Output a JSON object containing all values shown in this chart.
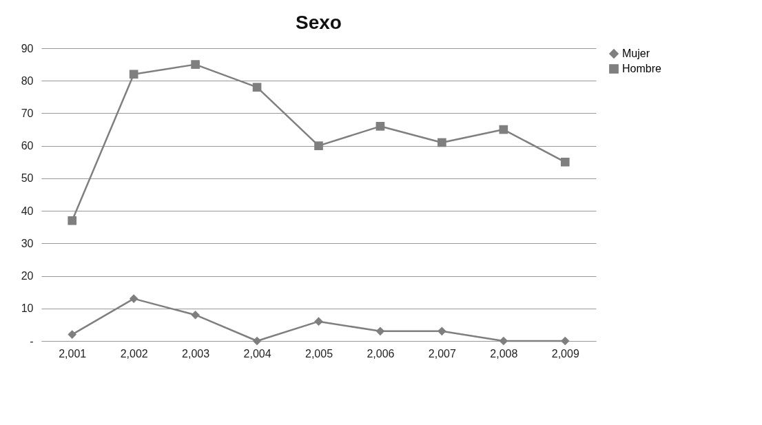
{
  "chart_data": {
    "type": "line",
    "title": "Sexo",
    "categories": [
      "2,001",
      "2,002",
      "2,003",
      "2,004",
      "2,005",
      "2,006",
      "2,007",
      "2,008",
      "2,009"
    ],
    "series": [
      {
        "name": "Mujer",
        "color": "#7f7f7f",
        "marker": "diamond",
        "values": [
          2,
          13,
          8,
          0,
          6,
          3,
          3,
          0,
          0
        ]
      },
      {
        "name": "Hombre",
        "color": "#7f7f7f",
        "marker": "square",
        "values": [
          37,
          82,
          85,
          78,
          60,
          66,
          61,
          65,
          55
        ]
      }
    ],
    "ylim": [
      0,
      90
    ],
    "yticks": [
      {
        "value": 0,
        "label": "-"
      },
      10,
      20,
      30,
      40,
      50,
      60,
      70,
      80,
      90
    ],
    "grid": "y",
    "legend": "right",
    "line_style": "solid"
  }
}
